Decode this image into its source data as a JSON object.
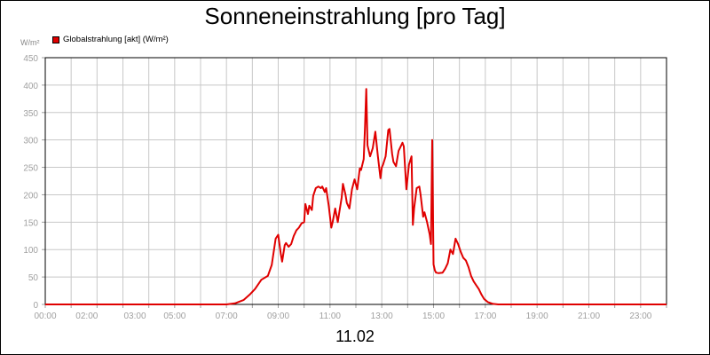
{
  "chart_data": {
    "type": "line",
    "title": "Sonneneinstrahlung [pro Tag]",
    "ylabel": "W/m²",
    "xlabel": "11.02",
    "ylim": [
      0,
      450
    ],
    "y_ticks": [
      "0",
      "50",
      "100",
      "150",
      "200",
      "250",
      "300",
      "350",
      "400",
      "450"
    ],
    "x_ticks": [
      "00:00",
      "02:00",
      "03:00",
      "05:00",
      "07:00",
      "09:00",
      "11:00",
      "13:00",
      "15:00",
      "17:00",
      "19:00",
      "21:00",
      "23:00"
    ],
    "x_tick_hours": [
      0,
      2,
      3,
      5,
      7,
      9,
      11,
      13,
      15,
      17,
      19,
      21,
      23
    ],
    "grid": true,
    "legend_position": "top-left",
    "series": [
      {
        "name": "Globalstrahlung [akt] (W/m²)",
        "color": "#e00000",
        "x_hours": [
          0,
          7.0,
          7.33,
          7.66,
          7.9,
          8.1,
          8.35,
          8.6,
          8.75,
          8.9,
          9.0,
          9.1,
          9.15,
          9.25,
          9.3,
          9.4,
          9.5,
          9.6,
          9.65,
          9.7,
          9.8,
          9.9,
          10.0,
          10.05,
          10.15,
          10.2,
          10.3,
          10.35,
          10.45,
          10.55,
          10.65,
          10.7,
          10.8,
          10.85,
          10.95,
          11.05,
          11.1,
          11.2,
          11.3,
          11.35,
          11.45,
          11.5,
          11.6,
          11.65,
          11.75,
          11.85,
          11.95,
          12.05,
          12.15,
          12.2,
          12.3,
          12.35,
          12.4,
          12.45,
          12.55,
          12.65,
          12.75,
          12.85,
          12.95,
          13.0,
          13.05,
          13.15,
          13.25,
          13.3,
          13.4,
          13.45,
          13.55,
          13.65,
          13.7,
          13.8,
          13.85,
          13.95,
          14.05,
          14.15,
          14.2,
          14.25,
          14.35,
          14.45,
          14.5,
          14.6,
          14.65,
          14.75,
          14.85,
          14.9,
          14.95,
          15.0,
          15.05,
          15.1,
          15.2,
          15.35,
          15.45,
          15.55,
          15.65,
          15.75,
          15.85,
          15.95,
          16.05,
          16.15,
          16.25,
          16.35,
          16.45,
          16.55,
          16.65,
          16.75,
          16.85,
          16.95,
          17.1,
          17.3,
          17.5,
          17.75,
          18.0,
          24.0
        ],
        "values": [
          0,
          0,
          2,
          8,
          18,
          28,
          45,
          52,
          72,
          120,
          127,
          92,
          78,
          108,
          112,
          105,
          110,
          125,
          130,
          135,
          140,
          148,
          150,
          183,
          165,
          180,
          172,
          198,
          212,
          215,
          212,
          215,
          205,
          212,
          180,
          140,
          150,
          175,
          150,
          165,
          195,
          220,
          200,
          185,
          175,
          210,
          228,
          210,
          248,
          245,
          265,
          320,
          393,
          290,
          270,
          285,
          315,
          270,
          230,
          250,
          255,
          270,
          318,
          320,
          275,
          260,
          252,
          280,
          285,
          295,
          288,
          210,
          255,
          270,
          145,
          175,
          212,
          215,
          200,
          160,
          168,
          150,
          128,
          110,
          300,
          73,
          62,
          58,
          57,
          58,
          65,
          75,
          100,
          92,
          120,
          110,
          96,
          85,
          80,
          68,
          52,
          42,
          35,
          28,
          18,
          10,
          4,
          1,
          0,
          0,
          0,
          0
        ]
      }
    ]
  }
}
